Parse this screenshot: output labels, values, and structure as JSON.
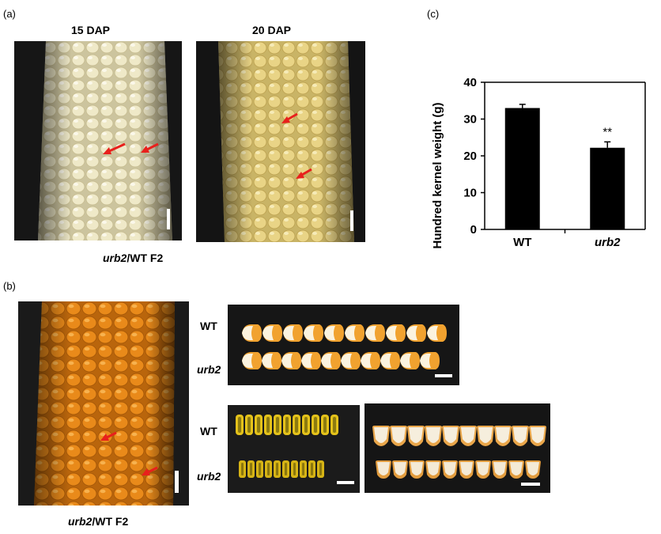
{
  "panel_a": {
    "label": "(a)",
    "left_title": "15 DAP",
    "right_title": "20 DAP",
    "caption_gene": "urb2",
    "caption_rest": "/WT F2"
  },
  "panel_b": {
    "label": "(b)",
    "row_labels": [
      "WT",
      "urb2",
      "WT",
      "urb2"
    ],
    "caption_gene": "urb2",
    "caption_rest": "/WT F2"
  },
  "panel_c": {
    "label": "(c)",
    "significance": "**"
  },
  "chart_data": {
    "type": "bar",
    "categories": [
      "WT",
      "urb2"
    ],
    "values": [
      33.0,
      22.2
    ],
    "errors": [
      1.0,
      1.6
    ],
    "ylabel": "Hundred kernel weight (g)",
    "ylim": [
      0,
      40
    ],
    "yticks": [
      0,
      10,
      20,
      30,
      40
    ],
    "bar_color": "#000000",
    "grid": false
  },
  "colors": {
    "arrow": "#e8201c",
    "white_kernel": "#efe9c8",
    "yellow_kernel": "#e9d486",
    "orange_kernel": "#e98a1a",
    "photo_bg": "#111111"
  }
}
